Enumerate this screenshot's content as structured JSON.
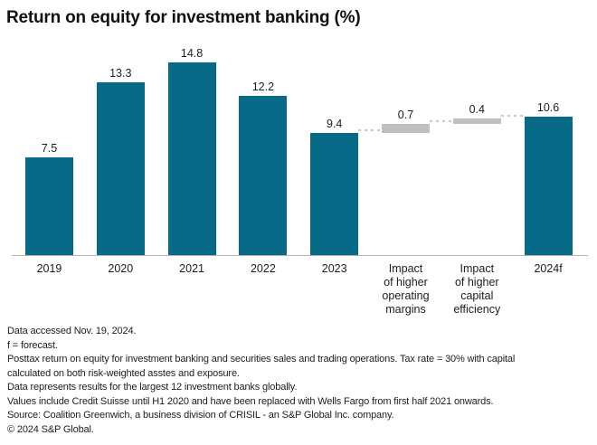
{
  "title": "Return on equity for investment banking (%)",
  "chart_data": {
    "type": "bar",
    "subtype": "waterfall",
    "title": "Return on equity for investment banking (%)",
    "categories": [
      "2019",
      "2020",
      "2021",
      "2022",
      "2023",
      "Impact of higher operating margins",
      "Impact of higher capital efficiency",
      "2024f"
    ],
    "category_lines": [
      [
        "2019"
      ],
      [
        "2020"
      ],
      [
        "2021"
      ],
      [
        "2022"
      ],
      [
        "2023"
      ],
      [
        "Impact",
        "of higher",
        "operating",
        "margins"
      ],
      [
        "Impact",
        "of higher",
        "capital",
        "efficiency"
      ],
      [
        "2024f"
      ]
    ],
    "values": [
      7.5,
      13.3,
      14.8,
      12.2,
      9.4,
      0.7,
      0.4,
      10.6
    ],
    "bar_types": [
      "total",
      "total",
      "total",
      "total",
      "total",
      "delta",
      "delta",
      "total"
    ],
    "value_labels": [
      "7.5",
      "13.3",
      "14.8",
      "12.2",
      "9.4",
      "0.7",
      "0.4",
      "10.6"
    ],
    "ylim": [
      0,
      16.8
    ],
    "grid": false,
    "legend": "none",
    "colors": {
      "total_bar": "#076a87",
      "delta_bar": "#c0c0c0",
      "axis_line": "#b2b2b2",
      "connector": "#c9c9c9",
      "label_text": "#1d1d1b"
    }
  },
  "footnote_lines": [
    "Data accessed Nov. 19, 2024.",
    "f = forecast.",
    "Posttax return on equity for investment banking and securities sales and trading operations. Tax rate = 30% with capital",
    "calculated on both risk-weighted asstes and exposure.",
    "Data represents results for the largest 12 investment banks globally.",
    "Values include Credit Suisse until H1 2020 and have been replaced with Wells Fargo from first half 2021 onwards.",
    "Source: Coalition Greenwich, a business division of CRISIL - an S&P Global Inc. company.",
    "© 2024 S&P Global."
  ]
}
